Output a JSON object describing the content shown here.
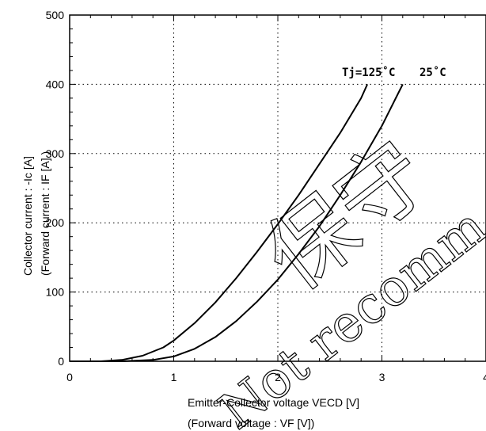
{
  "chart_data": {
    "type": "line",
    "title": "",
    "xlabel": "Emitter-Collector voltage  VECD  [V]",
    "xlabel_sub": "(Forward  voltage   :   VF [V])",
    "ylabel": "Collector current  : -Ic  [A]",
    "ylabel_sub": "(Forward  current  :  IF  [A] )",
    "xlim": [
      0,
      4
    ],
    "ylim": [
      0,
      500
    ],
    "xticks": [
      "0",
      "1",
      "2",
      "3",
      "4"
    ],
    "yticks": [
      "0",
      "100",
      "200",
      "300",
      "400",
      "500"
    ],
    "grid": "dotted",
    "series": [
      {
        "name": "Tj=125˚C",
        "x": [
          0.3,
          0.5,
          0.7,
          0.9,
          1.0,
          1.2,
          1.4,
          1.6,
          1.8,
          2.0,
          2.2,
          2.4,
          2.6,
          2.8,
          2.86
        ],
        "y": [
          0,
          2,
          8,
          20,
          30,
          55,
          85,
          120,
          158,
          198,
          240,
          285,
          330,
          380,
          400
        ]
      },
      {
        "name": "25˚C",
        "x": [
          0.5,
          0.8,
          1.0,
          1.2,
          1.4,
          1.6,
          1.8,
          2.0,
          2.2,
          2.4,
          2.6,
          2.8,
          3.0,
          3.15,
          3.2
        ],
        "y": [
          0,
          2,
          7,
          18,
          35,
          58,
          86,
          118,
          155,
          195,
          240,
          288,
          340,
          385,
          400
        ]
      }
    ]
  },
  "watermark": {
    "cjk": "保守",
    "latin": "Not recomm"
  }
}
